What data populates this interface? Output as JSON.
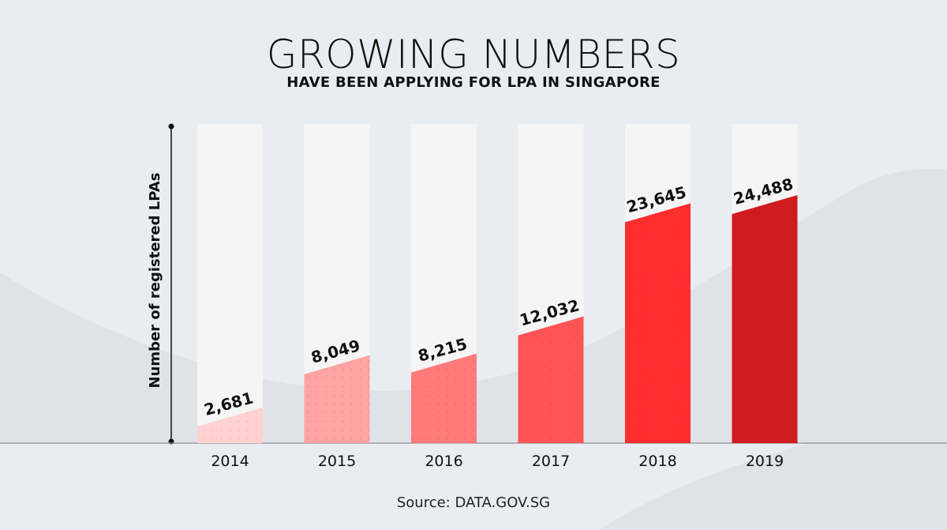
{
  "header": {
    "title": "GROWING NUMBERS",
    "subtitle": "HAVE BEEN APPLYING FOR LPA IN SINGAPORE"
  },
  "footer": {
    "source": "Source: DATA.GOV.SG"
  },
  "chart_data": {
    "type": "bar",
    "categories": [
      "2014",
      "2015",
      "2016",
      "2017",
      "2018",
      "2019"
    ],
    "values": [
      2681,
      8049,
      8215,
      12032,
      23645,
      24488
    ],
    "value_labels": [
      "2,681",
      "8,049",
      "8,215",
      "12,032",
      "23,645",
      "24,488"
    ],
    "title": "GROWING NUMBERS",
    "subtitle": "HAVE BEEN APPLYING FOR LPA IN SINGAPORE",
    "xlabel": "",
    "ylabel": "Number of registered LPAs",
    "ylim": [
      0,
      30000
    ],
    "grid": false,
    "legend": "none",
    "bar_colors": [
      "#ffd1d1",
      "#ffa3a3",
      "#ff7a7a",
      "#ff5454",
      "#ff2e2e",
      "#d01c1f"
    ],
    "track_color": "#f5f5f5"
  }
}
